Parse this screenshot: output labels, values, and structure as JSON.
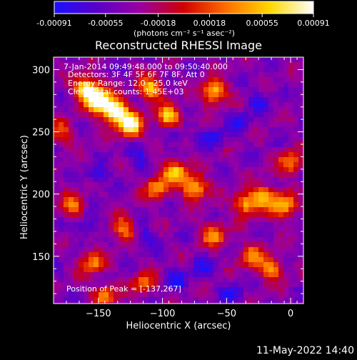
{
  "colorbar": {
    "tick_labels": [
      "-0.00091",
      "-0.00055",
      "-0.00018",
      "0.00018",
      "0.00055",
      "0.00091"
    ],
    "unit_label": "(photons cm⁻² s⁻¹ asec⁻²)",
    "range": [
      -0.00091,
      0.00091
    ],
    "colors": [
      "#1a10ff",
      "#5a00c8",
      "#9a00a0",
      "#d00000",
      "#ff7000",
      "#ffd800",
      "#ffffff"
    ]
  },
  "chart_data": {
    "type": "heatmap",
    "title": "Reconstructed RHESSI Image",
    "xlabel": "Heliocentric X (arcsec)",
    "ylabel": "Heliocentric Y (arcsec)",
    "xlim": [
      -185,
      10
    ],
    "ylim": [
      112,
      310
    ],
    "xticks": [
      -150,
      -100,
      -50,
      0
    ],
    "xtick_labels": [
      "−150",
      "−100",
      "−50",
      "0"
    ],
    "yticks": [
      150,
      200,
      250,
      300
    ],
    "ytick_labels": [
      "150",
      "200",
      "250",
      "300"
    ],
    "annotations": [
      "7-Jan-2014 09:49:48.000 to 09:50:40.000",
      "Detectors: 3F 4F 5F 6F 7F 8F, Att 0",
      "Energy Range: 12.0 - 25.0 keV",
      "Clean    Total counts: 1.45E+03"
    ],
    "peak_label": "Position of Peak = [-137,267]",
    "peak_position": [
      -137,
      267
    ],
    "bright_sources": [
      {
        "x": -150,
        "y": 275,
        "level": 1.0
      },
      {
        "x": -137,
        "y": 267,
        "level": 1.0
      },
      {
        "x": -125,
        "y": 255,
        "level": 0.9
      },
      {
        "x": -160,
        "y": 285,
        "level": 0.85
      },
      {
        "x": -95,
        "y": 262,
        "level": 0.75
      },
      {
        "x": -110,
        "y": 285,
        "level": 0.7
      },
      {
        "x": -60,
        "y": 282,
        "level": 0.75
      },
      {
        "x": -90,
        "y": 218,
        "level": 0.7
      },
      {
        "x": -75,
        "y": 205,
        "level": 0.75
      },
      {
        "x": -105,
        "y": 205,
        "level": 0.55
      },
      {
        "x": -35,
        "y": 192,
        "level": 0.65
      },
      {
        "x": -20,
        "y": 198,
        "level": 0.6
      },
      {
        "x": -5,
        "y": 190,
        "level": 0.65
      },
      {
        "x": 0,
        "y": 225,
        "level": 0.55
      },
      {
        "x": -60,
        "y": 167,
        "level": 0.55
      },
      {
        "x": -30,
        "y": 150,
        "level": 0.5
      },
      {
        "x": -15,
        "y": 140,
        "level": 0.55
      },
      {
        "x": -155,
        "y": 145,
        "level": 0.55
      },
      {
        "x": -145,
        "y": 118,
        "level": 0.5
      },
      {
        "x": -170,
        "y": 190,
        "level": 0.5
      },
      {
        "x": -130,
        "y": 172,
        "level": 0.55
      },
      {
        "x": -115,
        "y": 128,
        "level": 0.45
      },
      {
        "x": -180,
        "y": 250,
        "level": 0.4
      }
    ],
    "dark_sources": [
      {
        "x": -150,
        "y": 215
      },
      {
        "x": -118,
        "y": 230
      },
      {
        "x": -90,
        "y": 250
      },
      {
        "x": -60,
        "y": 245
      },
      {
        "x": -40,
        "y": 258
      },
      {
        "x": -25,
        "y": 275
      },
      {
        "x": -115,
        "y": 165
      },
      {
        "x": -90,
        "y": 130
      },
      {
        "x": -45,
        "y": 120
      },
      {
        "x": -70,
        "y": 140
      },
      {
        "x": -160,
        "y": 175
      }
    ]
  },
  "footer": {
    "timestamp": "11-May-2022 14:40"
  }
}
